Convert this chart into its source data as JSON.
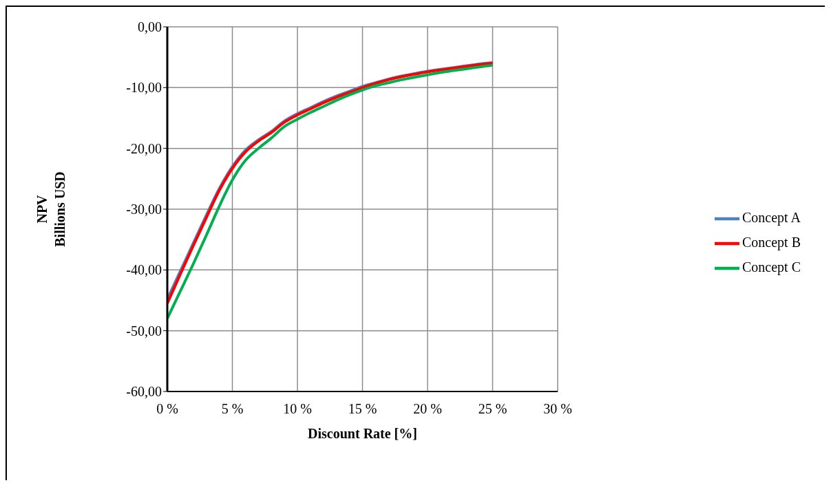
{
  "chart_data": {
    "type": "line",
    "xlabel": "Discount Rate [%]",
    "ylabel": "NPV\nBillions USD",
    "x": [
      0,
      1,
      2,
      3,
      4,
      5,
      6,
      7,
      8,
      9,
      10,
      11,
      12,
      13,
      14,
      15,
      16,
      17,
      18,
      19,
      20,
      21,
      22,
      23,
      24,
      25
    ],
    "series": [
      {
        "name": "Concept A",
        "color": "#4f81bd",
        "values": [
          -44.8,
          -40.2,
          -35.6,
          -31,
          -26.6,
          -23,
          -20.3,
          -18.6,
          -17.2,
          -15.5,
          -14.3,
          -13.3,
          -12.3,
          -11.4,
          -10.6,
          -9.8,
          -9.2,
          -8.6,
          -8.1,
          -7.7,
          -7.3,
          -7,
          -6.7,
          -6.4,
          -6.1,
          -5.9
        ]
      },
      {
        "name": "Concept B",
        "color": "#ff0000",
        "values": [
          -45.5,
          -40.7,
          -36,
          -31.4,
          -26.9,
          -23.3,
          -20.6,
          -18.8,
          -17.4,
          -15.7,
          -14.5,
          -13.5,
          -12.5,
          -11.6,
          -10.8,
          -10,
          -9.3,
          -8.7,
          -8.2,
          -7.8,
          -7.4,
          -7.1,
          -6.8,
          -6.5,
          -6.2,
          -6
        ]
      },
      {
        "name": "Concept C",
        "color": "#00b050",
        "values": [
          -48,
          -43.5,
          -39,
          -34.3,
          -29.5,
          -25.2,
          -22,
          -20,
          -18.3,
          -16.4,
          -15.2,
          -14.1,
          -13.1,
          -12.1,
          -11.2,
          -10.4,
          -9.7,
          -9.2,
          -8.7,
          -8.3,
          -7.9,
          -7.5,
          -7.2,
          -6.9,
          -6.6,
          -6.3
        ]
      }
    ],
    "xlim": [
      0,
      30
    ],
    "xticks": [
      {
        "value": 0,
        "label": "0 %"
      },
      {
        "value": 5,
        "label": "5 %"
      },
      {
        "value": 10,
        "label": "10 %"
      },
      {
        "value": 15,
        "label": "15 %"
      },
      {
        "value": 20,
        "label": "20 %"
      },
      {
        "value": 25,
        "label": "25 %"
      },
      {
        "value": 30,
        "label": "30 %"
      }
    ],
    "ylim": [
      -60,
      0
    ],
    "yticks": [
      {
        "value": -60,
        "label": "-60,00"
      },
      {
        "value": -50,
        "label": "-50,00"
      },
      {
        "value": -40,
        "label": "-40,00"
      },
      {
        "value": -30,
        "label": "-30,00"
      },
      {
        "value": -20,
        "label": "-20,00"
      },
      {
        "value": -10,
        "label": "-10,00"
      },
      {
        "value": 0,
        "label": "0,00"
      }
    ],
    "grid": true,
    "legend": "right",
    "line_style": "solid"
  }
}
